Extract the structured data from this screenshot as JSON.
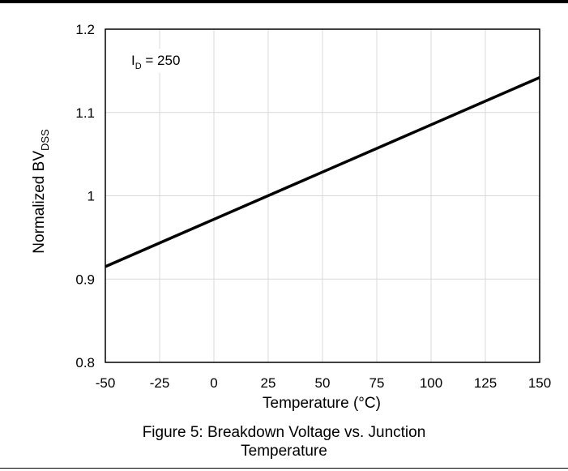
{
  "chart_data": {
    "type": "line",
    "xlabel": "Temperature (°C)",
    "ylabel_main": "Normalized BV",
    "ylabel_sub": "DSS",
    "annotation": {
      "prefix": "I",
      "sub": "D",
      "text": " = 250"
    },
    "xlim": [
      -50,
      150
    ],
    "ylim": [
      0.8,
      1.2
    ],
    "x_ticks": [
      -50,
      -25,
      0,
      25,
      50,
      75,
      100,
      125,
      150
    ],
    "y_ticks": [
      0.8,
      0.9,
      1,
      1.1,
      1.2
    ],
    "x_tick_labels": [
      "-50",
      "-25",
      "0",
      "25",
      "50",
      "75",
      "100",
      "125",
      "150"
    ],
    "y_tick_labels": [
      "0.8",
      "0.9",
      "1",
      "1.1",
      "1.2"
    ],
    "grid": true,
    "series": [
      {
        "x": [
          -50,
          150
        ],
        "y": [
          0.915,
          1.142
        ]
      }
    ]
  },
  "caption": {
    "line1": "Figure 5: Breakdown Voltage vs. Junction",
    "line2": "Temperature"
  }
}
